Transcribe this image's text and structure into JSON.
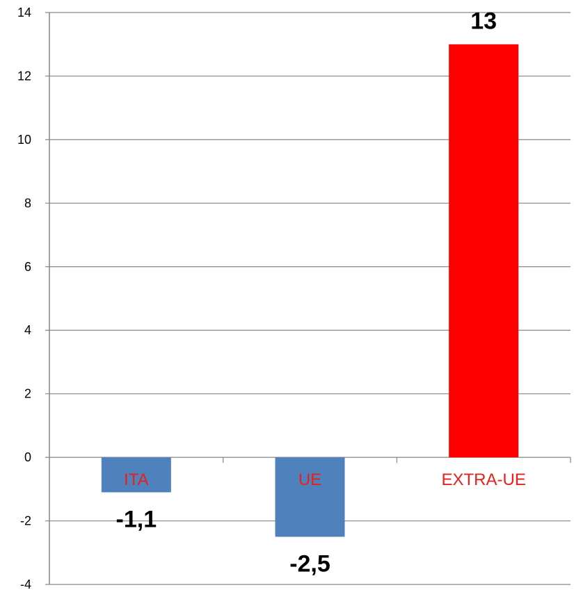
{
  "chart_data": {
    "type": "bar",
    "categories": [
      "ITA",
      "UE",
      "EXTRA-UE"
    ],
    "values": [
      -1.1,
      -2.5,
      13
    ],
    "data_labels": [
      "-1,1",
      "-2,5",
      "13"
    ],
    "bar_colors": [
      "#4f81bd",
      "#4f81bd",
      "#ff0000"
    ],
    "category_label_color": "#e8201c",
    "ylim": [
      -4,
      14
    ],
    "yticks": [
      -4,
      -2,
      0,
      2,
      4,
      6,
      8,
      10,
      12,
      14
    ],
    "grid": true,
    "legend": "none",
    "title": "",
    "xlabel": "",
    "ylabel": ""
  }
}
